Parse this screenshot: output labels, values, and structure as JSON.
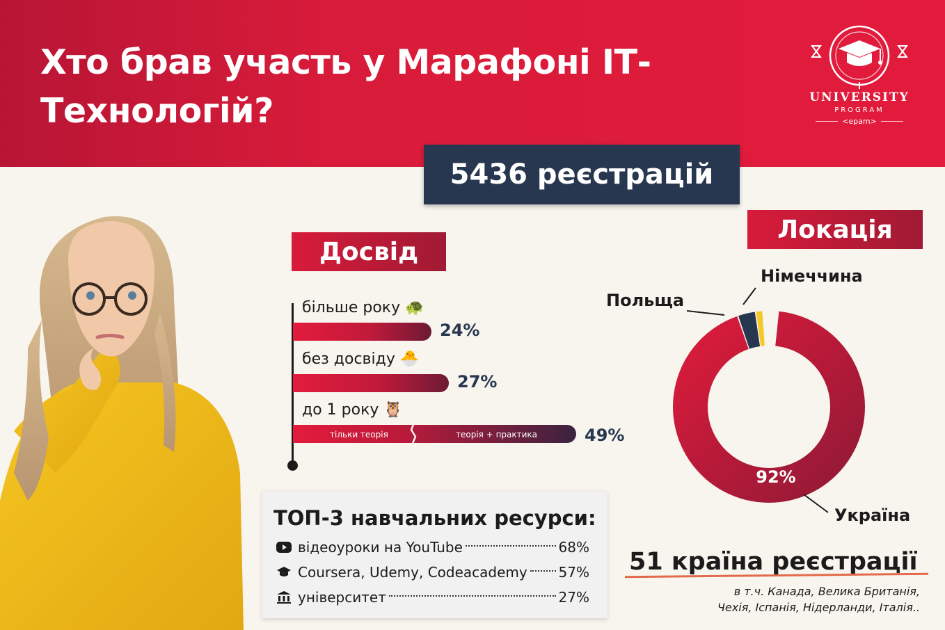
{
  "header": {
    "title": "Хто брав участь у Марафоні ІТ-Технологій?"
  },
  "logo": {
    "line1": "UNIVERSITY",
    "line2": "PROGRAM",
    "line3": "<epam>"
  },
  "registrations": "5436 реєстрацій",
  "experience": {
    "heading": "Досвід",
    "segment_labels": [
      "тільки теорія",
      "теорія + практика"
    ]
  },
  "location": {
    "heading": "Локація",
    "countries_count": "51 країна реєстрації",
    "note_line1": "в т.ч. Канада, Велика Британія,",
    "note_line2": "Чехія, Іспанія, Нідерланди, Італія.."
  },
  "top3": {
    "heading": "ТОП-3 навчальних ресурси:",
    "items": [
      {
        "name": "відеоуроки на YouTube",
        "value": "68%",
        "icon": "youtube-icon"
      },
      {
        "name": "Coursera, Udemy, Codeacademy",
        "value": "57%",
        "icon": "graduation-icon"
      },
      {
        "name": "університет",
        "value": "27%",
        "icon": "university-icon"
      }
    ]
  },
  "colors": {
    "brand_red": "#e31b3c",
    "dark_red": "#8b1a35",
    "navy": "#283750",
    "germany_yellow": "#f3c928",
    "background": "#f8f5ef"
  },
  "chart_data": [
    {
      "type": "bar",
      "orientation": "horizontal",
      "categories": [
        "більше року 🐢",
        "без досвіду 🐣",
        "до 1 року 🦉"
      ],
      "values": [
        24,
        27,
        49
      ],
      "value_labels": [
        "24%",
        "27%",
        "49%"
      ],
      "unit": "%"
    },
    {
      "type": "pie",
      "donut": true,
      "categories": [
        "Україна",
        "Польща",
        "Німеччина"
      ],
      "values": [
        92,
        3,
        1
      ],
      "value_labels": [
        "92%",
        "",
        ""
      ]
    }
  ]
}
